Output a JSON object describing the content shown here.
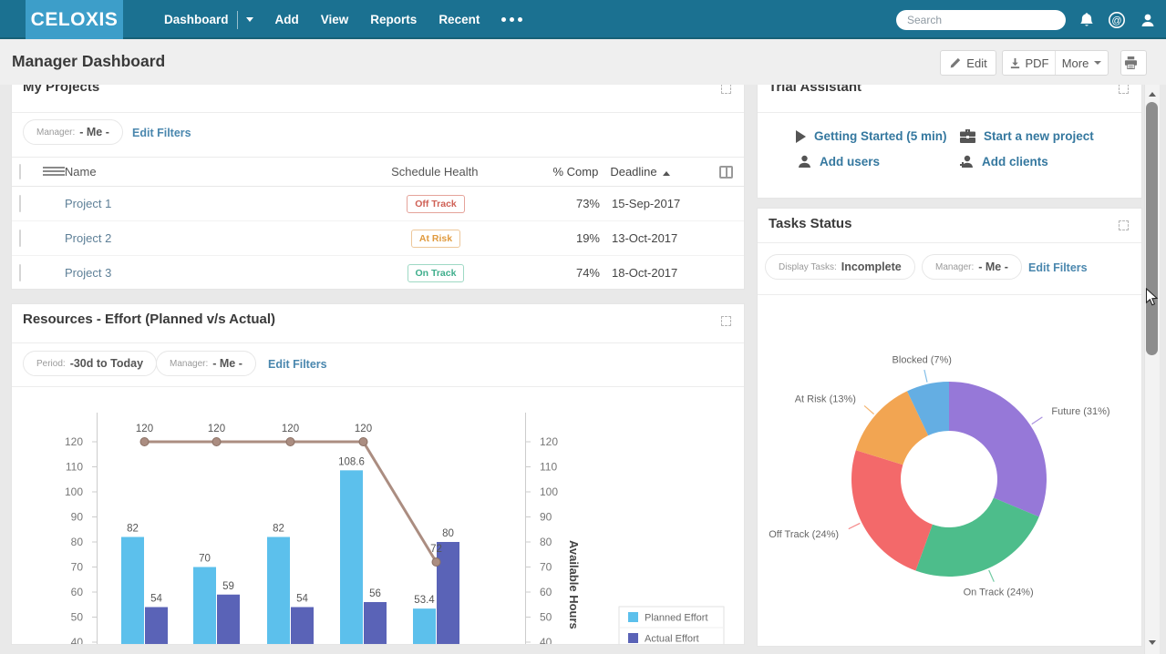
{
  "navbar": {
    "logo": "CELOXIS",
    "menu": [
      {
        "label": "Dashboard"
      },
      {
        "label": "Add"
      },
      {
        "label": "View"
      },
      {
        "label": "Reports"
      },
      {
        "label": "Recent"
      }
    ],
    "search": {
      "placeholder": "Search"
    }
  },
  "header": {
    "title": "Manager Dashboard",
    "edit_label": "Edit",
    "pdf_label": "PDF",
    "more_label": "More"
  },
  "my_projects": {
    "title": "My Projects",
    "filter": {
      "label": "Manager:",
      "value": "- Me -"
    },
    "edit_filters_label": "Edit Filters",
    "table": {
      "headers": {
        "name": "Name",
        "health": "Schedule Health",
        "comp": "% Comp",
        "deadline": "Deadline"
      },
      "rows": [
        {
          "name": "Project 1",
          "health": "Off Track",
          "health_color": "#cf6055",
          "health_border": "#e5a39a",
          "comp": "73%",
          "deadline": "15-Sep-2017"
        },
        {
          "name": "Project 2",
          "health": "At Risk",
          "health_color": "#e09a3e",
          "health_border": "#edc79a",
          "comp": "19%",
          "deadline": "13-Oct-2017"
        },
        {
          "name": "Project 3",
          "health": "On Track",
          "health_color": "#3fae8c",
          "health_border": "#9ed9c4",
          "comp": "74%",
          "deadline": "18-Oct-2017"
        }
      ]
    }
  },
  "resources": {
    "title": "Resources - Effort (Planned v/s Actual)",
    "filters": [
      {
        "label": "Period:",
        "value": "-30d to Today"
      },
      {
        "label": "Manager:",
        "value": "- Me -"
      }
    ],
    "edit_filters_label": "Edit Filters",
    "chart_data": {
      "type": "bar+line",
      "series": [
        {
          "name": "Planned Effort",
          "type": "bar",
          "color": "#5cc0ec",
          "values": [
            82,
            70,
            82,
            108.6,
            53.4
          ]
        },
        {
          "name": "Actual Effort",
          "type": "bar",
          "color": "#5a63b7",
          "values": [
            54,
            59,
            54,
            56,
            80
          ]
        },
        {
          "name": "Available Hours",
          "type": "line",
          "color": "#ab8d81",
          "values": [
            120,
            120,
            120,
            120,
            72
          ]
        }
      ],
      "y_ticks": [
        40,
        50,
        60,
        70,
        80,
        90,
        100,
        110,
        120
      ],
      "ylim": [
        40,
        125
      ],
      "ylabel_right": "Available Hours",
      "legend": [
        "Planned Effort",
        "Actual Effort"
      ],
      "legend_position": "bottom-right"
    }
  },
  "trial_assistant": {
    "title": "Trial Assistant",
    "links": [
      {
        "icon": "play-icon",
        "label": "Getting Started (5 min)"
      },
      {
        "icon": "briefcase-icon",
        "label": "Start a new project"
      },
      {
        "icon": "user-icon",
        "label": "Add users"
      },
      {
        "icon": "add-client-icon",
        "label": "Add clients"
      }
    ]
  },
  "tasks_status": {
    "title": "Tasks Status",
    "filters": [
      {
        "label": "Display Tasks:",
        "value": "Incomplete"
      },
      {
        "label": "Manager:",
        "value": "- Me -"
      }
    ],
    "edit_filters_label": "Edit Filters",
    "chart_data": {
      "type": "pie",
      "donut": true,
      "start_angle_deg": 0,
      "direction": "clockwise",
      "slices": [
        {
          "label": "Future",
          "pct": 31,
          "color": "#9678d8"
        },
        {
          "label": "On Track",
          "pct": 24,
          "color": "#4dbd8b"
        },
        {
          "label": "Off Track",
          "pct": 24,
          "color": "#f3696a"
        },
        {
          "label": "At Risk",
          "pct": 13,
          "color": "#f2a552"
        },
        {
          "label": "Blocked",
          "pct": 7,
          "color": "#64aee3"
        }
      ]
    }
  }
}
